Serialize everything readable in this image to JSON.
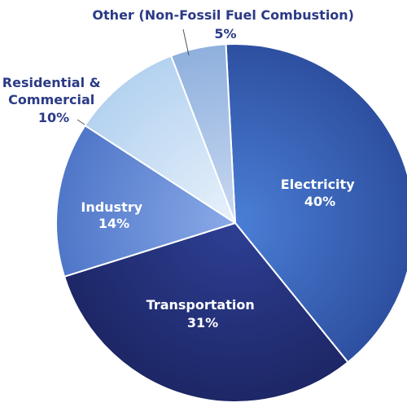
{
  "chart_data": {
    "type": "pie",
    "title": "",
    "slices": [
      {
        "name": "Electricity",
        "value": 40,
        "label_text": "40%",
        "color_light": "#4a7fd6",
        "color_dark": "#2e4fa0"
      },
      {
        "name": "Transportation",
        "value": 31,
        "label_text": "31%",
        "color_light": "#2e3f94",
        "color_dark": "#1d2766"
      },
      {
        "name": "Industry",
        "value": 14,
        "label_text": "14%",
        "color_light": "#8aaae8",
        "color_dark": "#4f76c8"
      },
      {
        "name": "Residential & Commercial",
        "value": 10,
        "label_text": "10%",
        "label_lines": [
          "Residential &",
          "Commercial"
        ],
        "color_light": "#e8f1fb",
        "color_dark": "#b4d2f0"
      },
      {
        "name": "Other (Non-Fossil Fuel Combustion)",
        "value": 5,
        "label_text": "5%",
        "color_light": "#c9d9f1",
        "color_dark": "#8fb0dd"
      }
    ],
    "start_angle_deg": -3,
    "direction": "clockwise",
    "legend": "none",
    "label_placement": {
      "Electricity": "inside",
      "Transportation": "inside",
      "Industry": "inside",
      "Residential & Commercial": "outside-left",
      "Other (Non-Fossil Fuel Combustion)": "outside-top"
    }
  }
}
